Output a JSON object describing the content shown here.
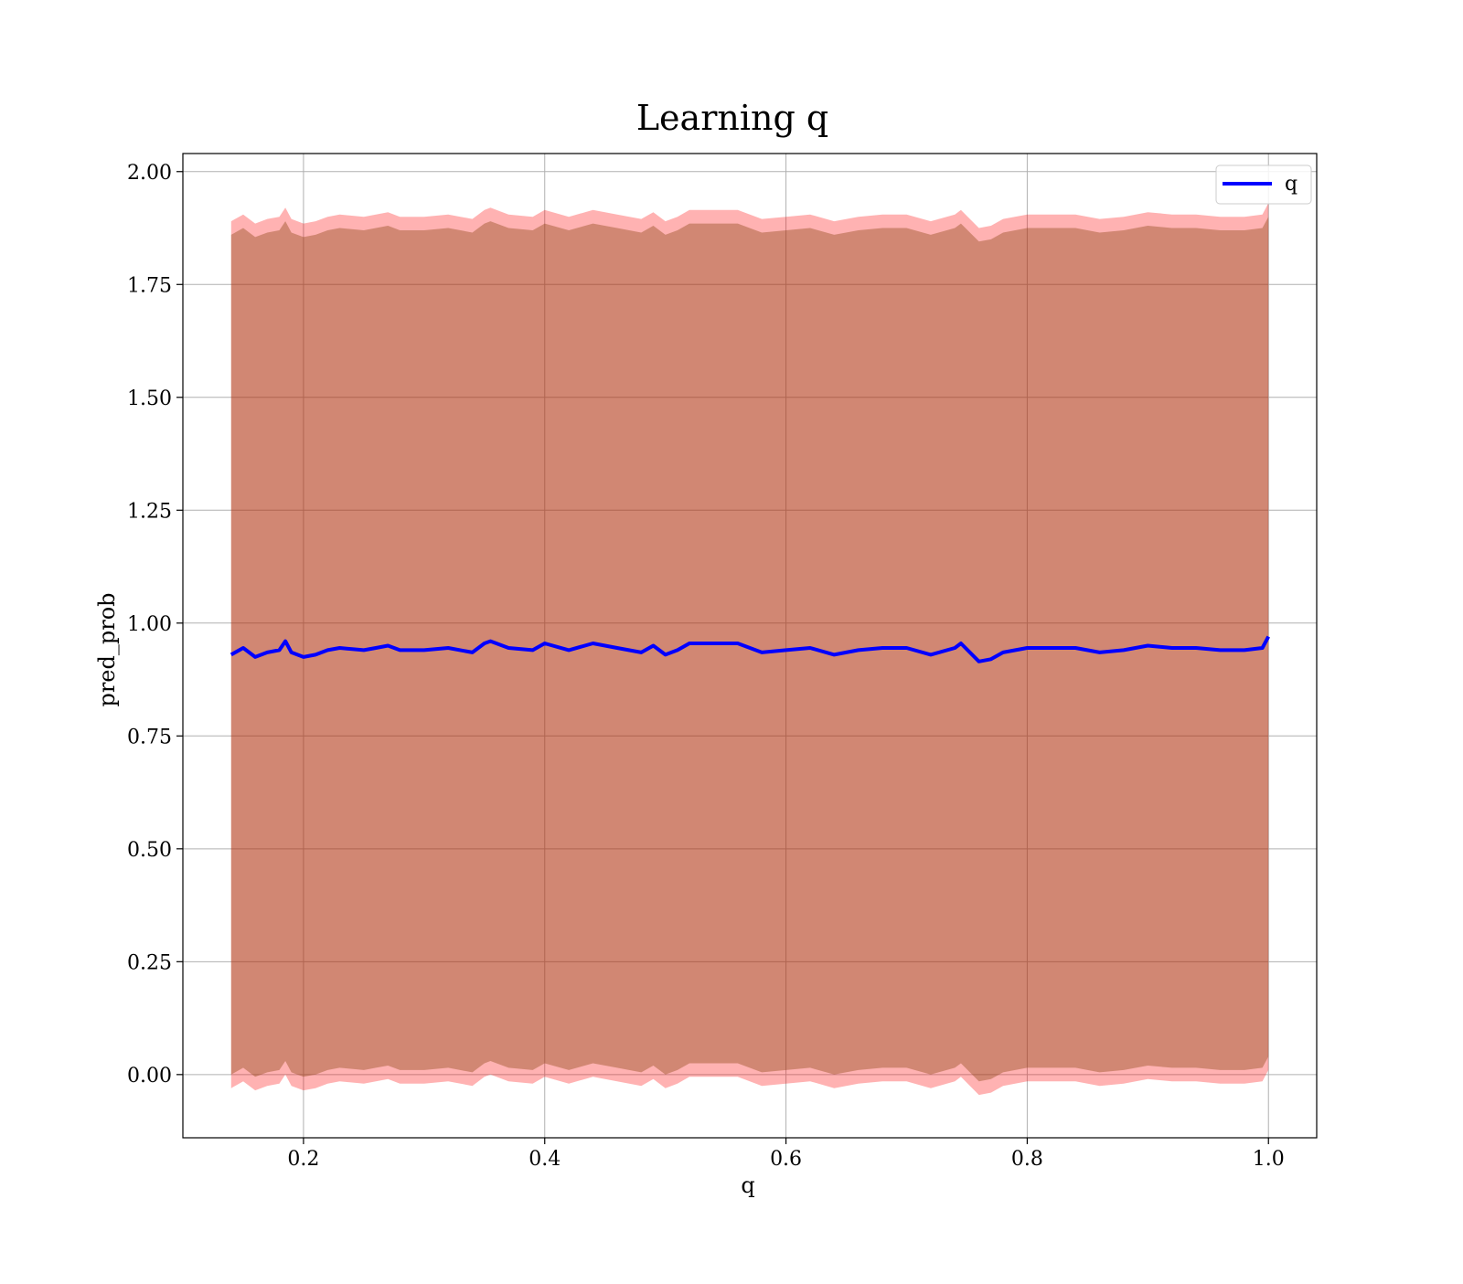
{
  "chart_data": {
    "type": "line",
    "title": "Learning q",
    "xlabel": "q",
    "ylabel": "pred_prob",
    "xlim": [
      0.1,
      1.04
    ],
    "ylim": [
      -0.14,
      2.04
    ],
    "xticks": [
      0.2,
      0.4,
      0.6,
      0.8,
      1.0
    ],
    "xtick_labels": [
      "0.2",
      "0.4",
      "0.6",
      "0.8",
      "1.0"
    ],
    "yticks": [
      0.0,
      0.25,
      0.5,
      0.75,
      1.0,
      1.25,
      1.5,
      1.75,
      2.0
    ],
    "ytick_labels": [
      "0.00",
      "0.25",
      "0.50",
      "0.75",
      "1.00",
      "1.25",
      "1.50",
      "1.75",
      "2.00"
    ],
    "grid": true,
    "legend": {
      "position": "top-right",
      "entries": [
        "q"
      ]
    },
    "series": [
      {
        "name": "q",
        "color": "#0000ff",
        "x": [
          0.14,
          0.15,
          0.16,
          0.17,
          0.18,
          0.185,
          0.19,
          0.2,
          0.21,
          0.22,
          0.23,
          0.25,
          0.26,
          0.27,
          0.28,
          0.3,
          0.32,
          0.34,
          0.35,
          0.355,
          0.37,
          0.39,
          0.4,
          0.42,
          0.44,
          0.46,
          0.48,
          0.49,
          0.5,
          0.51,
          0.52,
          0.54,
          0.56,
          0.58,
          0.6,
          0.62,
          0.64,
          0.66,
          0.68,
          0.7,
          0.72,
          0.74,
          0.745,
          0.76,
          0.77,
          0.78,
          0.8,
          0.82,
          0.84,
          0.86,
          0.88,
          0.9,
          0.92,
          0.94,
          0.96,
          0.98,
          0.995,
          1.0
        ],
        "y": [
          0.93,
          0.945,
          0.925,
          0.935,
          0.94,
          0.96,
          0.935,
          0.925,
          0.93,
          0.94,
          0.945,
          0.94,
          0.945,
          0.95,
          0.94,
          0.94,
          0.945,
          0.935,
          0.955,
          0.96,
          0.945,
          0.94,
          0.955,
          0.94,
          0.955,
          0.945,
          0.935,
          0.95,
          0.93,
          0.94,
          0.955,
          0.955,
          0.955,
          0.935,
          0.94,
          0.945,
          0.93,
          0.94,
          0.945,
          0.945,
          0.93,
          0.945,
          0.955,
          0.915,
          0.92,
          0.935,
          0.945,
          0.945,
          0.945,
          0.935,
          0.94,
          0.95,
          0.945,
          0.945,
          0.94,
          0.94,
          0.945,
          0.97
        ],
        "band_outer": {
          "color": "#ff0000",
          "opacity": 0.3,
          "half_width": 0.96
        },
        "band_inner": {
          "color": "#8b4513",
          "opacity": 0.4,
          "half_width": 0.93
        }
      }
    ]
  }
}
